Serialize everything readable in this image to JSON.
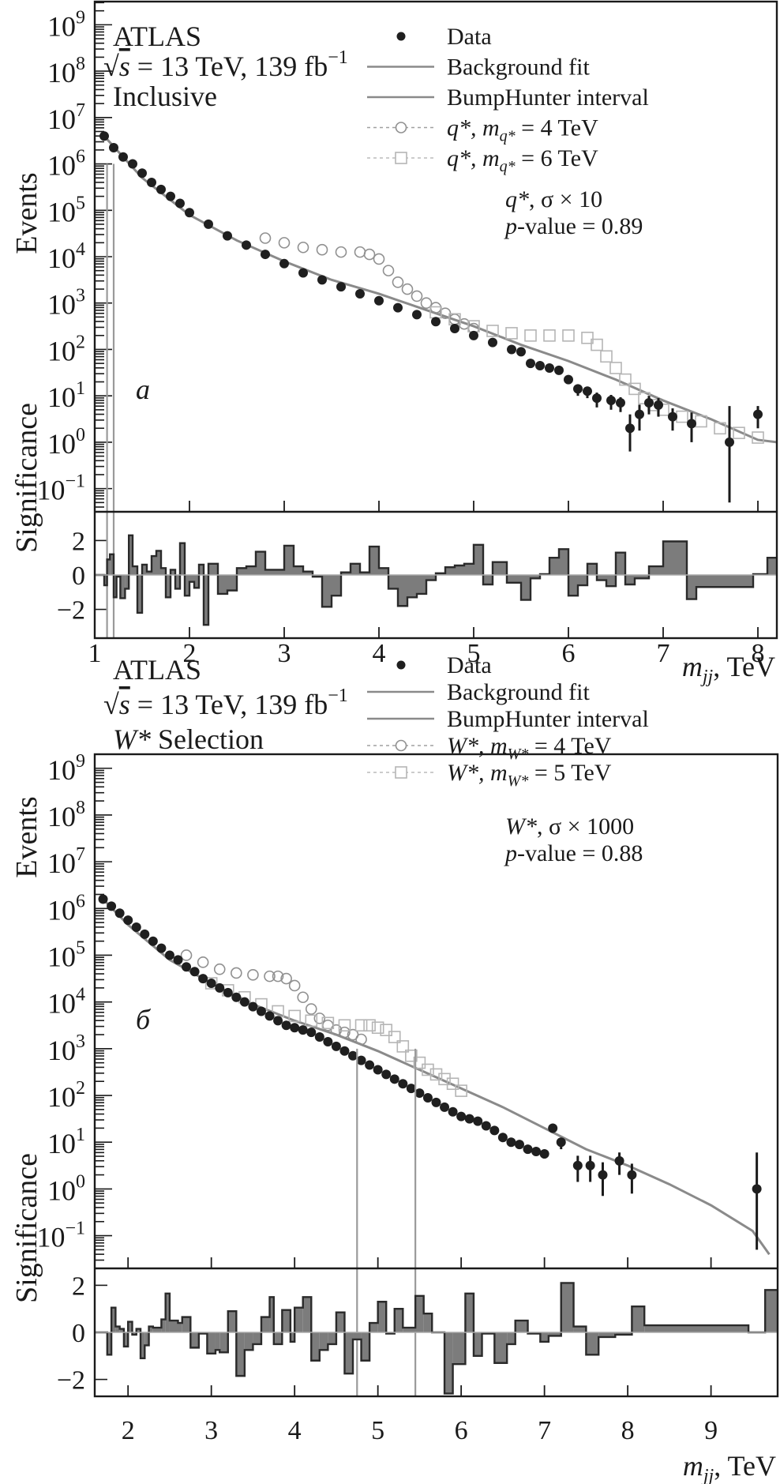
{
  "chart_data": [
    {
      "panel_label": "a",
      "type": "line",
      "experiment": "ATLAS",
      "energy_lumi": "√s = 13 TeV, 139 fb⁻¹",
      "energy_lumi_parts": {
        "sqrt": "√",
        "s": "s",
        "rest": " = 13 TeV, 139 fb",
        "sup": "−1"
      },
      "selection": "Inclusive",
      "xlabel": "m_jj, TeV",
      "xlabel_parts": {
        "m": "m",
        "sub": "jj",
        "unit": ", TeV"
      },
      "ylabel": "Events",
      "ratio_ylabel": "Significance",
      "xlim": [
        1.0,
        8.2
      ],
      "ylim_log10": [
        -1.5,
        9.5
      ],
      "ratio_ylim": [
        -3,
        3
      ],
      "xticks": [
        1,
        2,
        3,
        4,
        5,
        6,
        7,
        8
      ],
      "yticks": [
        "10⁻¹",
        "10⁰",
        "10¹",
        "10²",
        "10³",
        "10⁴",
        "10⁵",
        "10⁶",
        "10⁷",
        "10⁸",
        "10⁹"
      ],
      "ytick_exponents": [
        -1,
        0,
        1,
        2,
        3,
        4,
        5,
        6,
        7,
        8,
        9
      ],
      "ratio_yticks": [
        "−2",
        "0",
        "2"
      ],
      "ratio_ytick_values": [
        -2,
        0,
        2
      ],
      "legend": [
        {
          "label": "Data",
          "style": "dot"
        },
        {
          "label": "Background  fit",
          "style": "line"
        },
        {
          "label": "BumpHunter interval",
          "style": "line"
        },
        {
          "label_prefix": "q*, m",
          "label_sub": "q*",
          "label_suffix": " = 4 TeV",
          "style": "circle"
        },
        {
          "label_prefix": "q*, m",
          "label_sub": "q*",
          "label_suffix": " = 6 TeV",
          "style": "square"
        }
      ],
      "annotation_signal": "q*, σ × 10",
      "annotation_pvalue": "p-value = 0.89",
      "annotation_pvalue_parts": {
        "p": "p",
        "rest": "-value = 0.89"
      },
      "bumphunter_interval": [
        1.13,
        1.2
      ],
      "background_fit": {
        "x": [
          1.1,
          1.5,
          2.0,
          2.5,
          3.0,
          3.5,
          4.0,
          4.5,
          5.0,
          5.5,
          6.0,
          6.5,
          7.0,
          7.5,
          8.0,
          8.2
        ],
        "log10y": [
          6.6,
          5.7,
          4.9,
          4.35,
          3.9,
          3.5,
          3.2,
          2.85,
          2.5,
          2.1,
          1.75,
          1.35,
          0.9,
          0.5,
          0.05,
          0.0
        ]
      },
      "data": {
        "x": [
          1.1,
          1.2,
          1.3,
          1.4,
          1.5,
          1.6,
          1.7,
          1.8,
          1.9,
          2.0,
          2.2,
          2.4,
          2.6,
          2.8,
          3.0,
          3.2,
          3.4,
          3.6,
          3.8,
          4.0,
          4.2,
          4.4,
          4.6,
          4.8,
          5.0,
          5.2,
          5.4,
          5.5,
          5.6,
          5.7,
          5.8,
          5.9,
          6.0,
          6.1,
          6.2,
          6.3,
          6.45,
          6.55,
          6.65,
          6.75,
          6.85,
          6.95,
          7.1,
          7.3,
          7.7,
          8.0
        ],
        "log10y": [
          6.6,
          6.35,
          6.15,
          6.0,
          5.8,
          5.6,
          5.45,
          5.3,
          5.15,
          4.95,
          4.7,
          4.45,
          4.25,
          4.05,
          3.85,
          3.65,
          3.5,
          3.35,
          3.2,
          3.05,
          2.9,
          2.75,
          2.6,
          2.45,
          2.3,
          2.15,
          2.0,
          1.95,
          1.7,
          1.65,
          1.6,
          1.55,
          1.35,
          1.15,
          1.1,
          0.95,
          0.9,
          0.85,
          0.3,
          0.6,
          0.85,
          0.8,
          0.55,
          0.4,
          0.0,
          0.6
        ],
        "err_log10": [
          0,
          0,
          0,
          0,
          0,
          0,
          0,
          0,
          0,
          0,
          0,
          0,
          0,
          0,
          0,
          0,
          0,
          0,
          0,
          0,
          0,
          0,
          0,
          0,
          0,
          0,
          0,
          0,
          0,
          0,
          0,
          0,
          0.1,
          0.15,
          0.15,
          0.2,
          0.2,
          0.2,
          0.5,
          0.35,
          0.25,
          0.25,
          0.3,
          0.4,
          1.3,
          0.3
        ]
      },
      "signal_q4": {
        "x": [
          2.8,
          3.0,
          3.2,
          3.4,
          3.6,
          3.8,
          3.9,
          4.0,
          4.1,
          4.2,
          4.3,
          4.4,
          4.5,
          4.6,
          4.7,
          4.8,
          4.9,
          5.0
        ],
        "log10y": [
          4.4,
          4.3,
          4.2,
          4.15,
          4.1,
          4.1,
          4.05,
          3.95,
          3.7,
          3.45,
          3.3,
          3.15,
          3.0,
          2.9,
          2.78,
          2.65,
          2.55,
          2.45
        ]
      },
      "signal_q6": {
        "x": [
          4.6,
          4.8,
          5.0,
          5.2,
          5.4,
          5.6,
          5.8,
          6.0,
          6.2,
          6.3,
          6.4,
          6.5,
          6.6,
          6.7,
          6.8,
          6.9,
          7.0,
          7.2,
          7.4,
          7.6,
          7.8,
          8.0
        ],
        "log10y": [
          2.8,
          2.65,
          2.5,
          2.4,
          2.35,
          2.3,
          2.3,
          2.3,
          2.25,
          2.1,
          1.85,
          1.6,
          1.35,
          1.15,
          0.95,
          0.8,
          0.7,
          0.55,
          0.45,
          0.3,
          0.2,
          0.1
        ]
      },
      "significance": {
        "edges": [
          1.0,
          1.1,
          1.13,
          1.16,
          1.2,
          1.23,
          1.27,
          1.32,
          1.36,
          1.4,
          1.45,
          1.5,
          1.55,
          1.6,
          1.65,
          1.7,
          1.75,
          1.8,
          1.85,
          1.9,
          1.95,
          2.0,
          2.05,
          2.1,
          2.15,
          2.2,
          2.3,
          2.4,
          2.5,
          2.6,
          2.7,
          2.8,
          2.9,
          3.0,
          3.1,
          3.2,
          3.3,
          3.4,
          3.5,
          3.6,
          3.7,
          3.8,
          3.9,
          4.0,
          4.1,
          4.2,
          4.3,
          4.4,
          4.5,
          4.6,
          4.7,
          4.8,
          4.9,
          5.0,
          5.1,
          5.2,
          5.35,
          5.5,
          5.6,
          5.7,
          5.8,
          5.9,
          6.0,
          6.1,
          6.2,
          6.3,
          6.4,
          6.5,
          6.6,
          6.7,
          6.85,
          7.0,
          7.25,
          7.35,
          7.95,
          8.1,
          8.2
        ],
        "values": [
          0,
          -0.6,
          0.9,
          1.2,
          -1.3,
          -0.1,
          -1.35,
          -0.8,
          2.3,
          0.5,
          -2.2,
          0.6,
          0.2,
          1.1,
          1.4,
          0.4,
          -1.3,
          0.3,
          -0.8,
          1.85,
          -1.2,
          -0.4,
          -0.75,
          0.6,
          -2.9,
          0.65,
          -1.1,
          -0.9,
          0.4,
          0.5,
          1.35,
          0.3,
          0.3,
          1.7,
          0.5,
          0.2,
          -0.1,
          -1.85,
          -1.2,
          0.15,
          0.65,
          0.15,
          1.65,
          0.4,
          -0.8,
          -1.8,
          -1.3,
          -1.1,
          -0.3,
          0.1,
          0.45,
          0.55,
          0.65,
          1.75,
          -0.55,
          0.75,
          -0.45,
          -1.45,
          -0.2,
          0.05,
          1.0,
          1.5,
          -1.2,
          -0.6,
          0.65,
          -0.3,
          -0.65,
          1.3,
          -0.55,
          -0.2,
          0.5,
          1.95,
          -1.4,
          -0.7,
          0.05,
          1.0,
          -0.75,
          -1.25,
          -0.2,
          -0.6,
          -0.35,
          0.05,
          -1.6,
          -0.05,
          1.3,
          0.05,
          0.0,
          2.0,
          0.0
        ]
      }
    },
    {
      "panel_label": "б",
      "type": "line",
      "experiment": "ATLAS",
      "energy_lumi": "√s = 13 TeV, 139 fb⁻¹",
      "energy_lumi_parts": {
        "sqrt": "√",
        "s": "s",
        "rest": " = 13 TeV, 139 fb",
        "sup": "−1"
      },
      "selection": "W* Selection",
      "selection_parts": {
        "italic": "W*",
        "rest": " Selection"
      },
      "xlabel": "m_jj, TeV",
      "xlabel_parts": {
        "m": "m",
        "sub": "jj",
        "unit": ", TeV"
      },
      "ylabel": "Events",
      "ratio_ylabel": "Significance",
      "xlim": [
        1.6,
        9.8
      ],
      "ylim_log10": [
        -1.7,
        9.3
      ],
      "ratio_ylim": [
        -2.7,
        2.7
      ],
      "xticks": [
        2,
        3,
        4,
        5,
        6,
        7,
        8,
        9
      ],
      "yticks": [
        "10⁻¹",
        "10⁰",
        "10¹",
        "10²",
        "10³",
        "10⁴",
        "10⁵",
        "10⁶",
        "10⁷",
        "10⁸",
        "10⁹"
      ],
      "ytick_exponents": [
        -1,
        0,
        1,
        2,
        3,
        4,
        5,
        6,
        7,
        8,
        9
      ],
      "ratio_yticks": [
        "−2",
        "0",
        "2"
      ],
      "ratio_ytick_values": [
        -2,
        0,
        2
      ],
      "legend": [
        {
          "label": "Data",
          "style": "dot"
        },
        {
          "label": "Background  fit",
          "style": "line"
        },
        {
          "label": "BumpHunter interval",
          "style": "line"
        },
        {
          "label_prefix": "W*, m",
          "label_sub": "W*",
          "label_suffix": " = 4 TeV",
          "style": "circle"
        },
        {
          "label_prefix": "W*, m",
          "label_sub": "W*",
          "label_suffix": " = 5 TeV",
          "style": "square"
        }
      ],
      "annotation_signal": "W*, σ × 1000",
      "annotation_pvalue": "p-value = 0.88",
      "annotation_pvalue_parts": {
        "p": "p",
        "rest": "-value = 0.88"
      },
      "bumphunter_interval": [
        4.75,
        5.45
      ],
      "background_fit": {
        "x": [
          1.7,
          2.0,
          2.5,
          3.0,
          3.5,
          4.0,
          4.5,
          5.0,
          5.5,
          6.0,
          6.5,
          7.0,
          7.5,
          8.0,
          8.5,
          9.0,
          9.5,
          9.7
        ],
        "log10y": [
          6.2,
          5.65,
          4.9,
          4.4,
          3.95,
          3.6,
          3.3,
          2.95,
          2.55,
          2.15,
          1.75,
          1.3,
          0.85,
          0.5,
          0.1,
          -0.35,
          -0.9,
          -1.4
        ]
      },
      "data": {
        "x": [
          1.7,
          1.8,
          1.9,
          2.0,
          2.1,
          2.2,
          2.3,
          2.4,
          2.5,
          2.6,
          2.7,
          2.8,
          2.9,
          3.0,
          3.1,
          3.2,
          3.3,
          3.4,
          3.5,
          3.6,
          3.7,
          3.8,
          3.9,
          4.0,
          4.1,
          4.2,
          4.3,
          4.4,
          4.5,
          4.6,
          4.7,
          4.8,
          4.9,
          5.0,
          5.1,
          5.2,
          5.3,
          5.4,
          5.5,
          5.6,
          5.7,
          5.8,
          5.9,
          6.0,
          6.1,
          6.2,
          6.3,
          6.4,
          6.5,
          6.6,
          6.7,
          6.8,
          6.9,
          7.0,
          7.1,
          7.2,
          7.4,
          7.55,
          7.7,
          7.9,
          8.05,
          9.55
        ],
        "log10y": [
          6.2,
          6.05,
          5.9,
          5.75,
          5.6,
          5.45,
          5.3,
          5.15,
          5.0,
          4.9,
          4.75,
          4.65,
          4.5,
          4.4,
          4.3,
          4.2,
          4.1,
          4.0,
          3.9,
          3.8,
          3.7,
          3.6,
          3.5,
          3.45,
          3.4,
          3.35,
          3.25,
          3.15,
          3.05,
          2.95,
          2.85,
          2.75,
          2.65,
          2.55,
          2.45,
          2.35,
          2.25,
          2.15,
          2.05,
          1.95,
          1.85,
          1.75,
          1.65,
          1.55,
          1.5,
          1.45,
          1.35,
          1.25,
          1.1,
          1.0,
          0.95,
          0.85,
          0.8,
          0.75,
          1.3,
          1.0,
          0.5,
          0.5,
          0.3,
          0.6,
          0.3,
          0.0
        ],
        "err_log10": [
          0,
          0,
          0,
          0,
          0,
          0,
          0,
          0,
          0,
          0,
          0,
          0,
          0,
          0,
          0,
          0,
          0,
          0,
          0,
          0,
          0,
          0,
          0,
          0,
          0,
          0,
          0,
          0,
          0,
          0,
          0,
          0,
          0,
          0,
          0,
          0,
          0,
          0,
          0,
          0,
          0,
          0,
          0,
          0,
          0,
          0,
          0,
          0,
          0,
          0,
          0,
          0,
          0,
          0.1,
          0.1,
          0.15,
          0.35,
          0.35,
          0.45,
          0.3,
          0.4,
          1.3
        ]
      },
      "signal_w4": {
        "x": [
          2.7,
          2.9,
          3.1,
          3.3,
          3.5,
          3.7,
          3.8,
          3.9,
          4.0,
          4.1,
          4.2,
          4.3,
          4.4,
          4.5,
          4.6,
          4.7,
          4.8
        ],
        "log10y": [
          5.0,
          4.85,
          4.7,
          4.62,
          4.58,
          4.55,
          4.55,
          4.5,
          4.35,
          4.1,
          3.85,
          3.65,
          3.5,
          3.4,
          3.35,
          3.3,
          3.2
        ]
      },
      "signal_w5": {
        "x": [
          3.0,
          3.2,
          3.4,
          3.6,
          3.8,
          4.0,
          4.2,
          4.4,
          4.6,
          4.8,
          4.9,
          5.0,
          5.1,
          5.2,
          5.3,
          5.4,
          5.5,
          5.6,
          5.7,
          5.8,
          5.9,
          6.0
        ],
        "log10y": [
          4.4,
          4.25,
          4.1,
          3.95,
          3.8,
          3.7,
          3.6,
          3.55,
          3.5,
          3.5,
          3.5,
          3.45,
          3.4,
          3.25,
          3.05,
          2.85,
          2.7,
          2.55,
          2.45,
          2.35,
          2.25,
          2.1
        ]
      },
      "significance": {
        "edges": [
          1.6,
          1.75,
          1.8,
          1.85,
          1.9,
          1.95,
          2.0,
          2.05,
          2.1,
          2.15,
          2.2,
          2.25,
          2.3,
          2.4,
          2.45,
          2.5,
          2.6,
          2.65,
          2.75,
          2.85,
          2.95,
          3.05,
          3.1,
          3.2,
          3.3,
          3.4,
          3.5,
          3.6,
          3.7,
          3.75,
          3.85,
          3.95,
          4.0,
          4.1,
          4.2,
          4.3,
          4.4,
          4.5,
          4.6,
          4.7,
          4.8,
          4.9,
          5.0,
          5.1,
          5.2,
          5.3,
          5.45,
          5.55,
          5.65,
          5.8,
          5.9,
          6.05,
          6.15,
          6.25,
          6.4,
          6.55,
          6.65,
          6.8,
          6.95,
          7.05,
          7.2,
          7.35,
          7.5,
          7.65,
          7.85,
          8.05,
          8.2,
          9.45,
          9.65,
          9.8
        ],
        "values": [
          0,
          -0.95,
          1.05,
          0.25,
          0.15,
          -0.6,
          0.45,
          -0.1,
          0.15,
          -1.1,
          -0.55,
          0.25,
          0.2,
          0.55,
          1.65,
          0.5,
          0.4,
          0.65,
          -0.65,
          -0.05,
          -0.9,
          -0.75,
          -0.85,
          0.9,
          -1.85,
          -0.75,
          -0.5,
          0.65,
          1.5,
          -0.5,
          0.95,
          -0.4,
          1.05,
          1.5,
          -1.2,
          -0.75,
          -0.5,
          0.85,
          -1.75,
          -0.3,
          -1.2,
          0.4,
          1.3,
          -0.05,
          1.0,
          0.2,
          1.55,
          0.8,
          0.0,
          -2.6,
          -1.35,
          1.65,
          -1.0,
          -0.05,
          -1.3,
          -0.5,
          0.5,
          -0.05,
          -0.4,
          -0.15,
          2.1,
          0.25,
          -0.95,
          -0.2,
          -0.1,
          1.1,
          0.3,
          0.0,
          1.8,
          0.0
        ]
      }
    }
  ]
}
